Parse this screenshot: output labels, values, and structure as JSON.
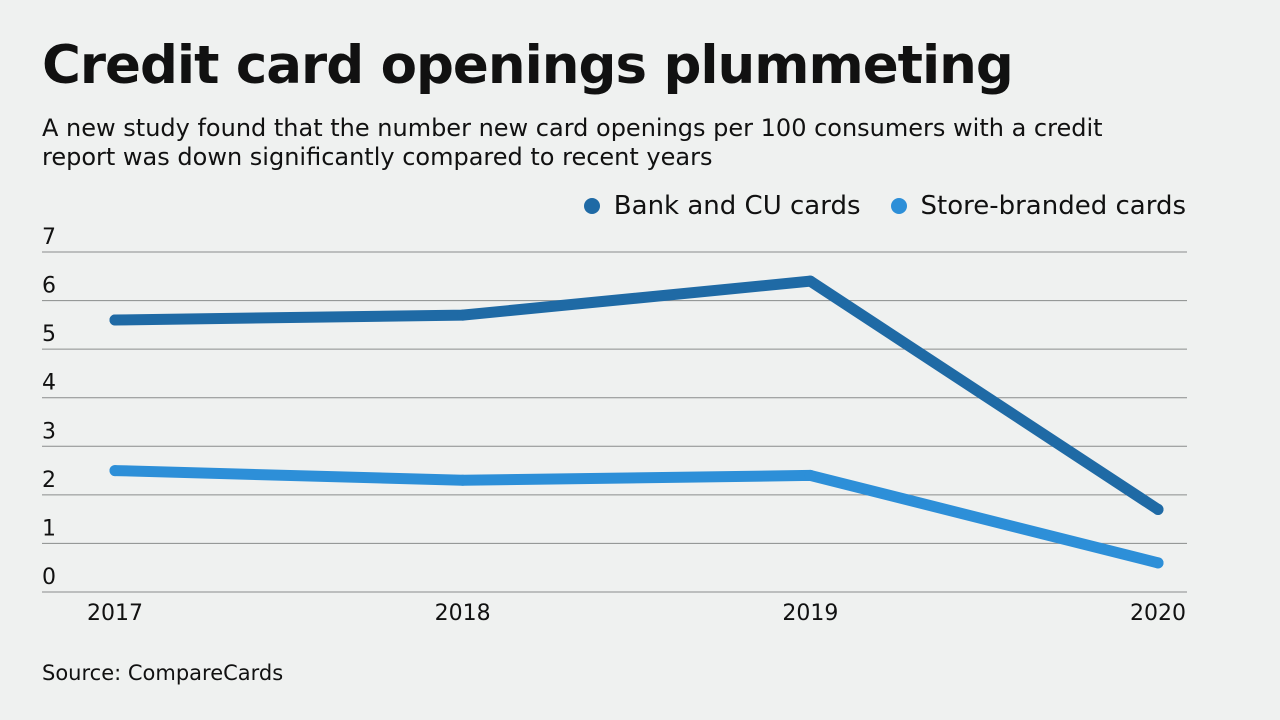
{
  "title": "Credit card openings plummeting",
  "subtitle": "A new study found that the number new card openings per 100 consumers with a credit report was down significantly compared to recent years",
  "source": "Source: CompareCards",
  "legend": {
    "items": [
      {
        "label": "Bank and CU cards",
        "color": "#1f6aa5"
      },
      {
        "label": "Store-branded cards",
        "color": "#2d8fd8"
      }
    ]
  },
  "chart_data": {
    "type": "line",
    "x": [
      "2017",
      "2018",
      "2019",
      "2020"
    ],
    "series": [
      {
        "name": "Bank and CU cards",
        "values": [
          5.6,
          5.7,
          6.4,
          1.7
        ],
        "color": "#1f6aa5"
      },
      {
        "name": "Store-branded cards",
        "values": [
          2.5,
          2.3,
          2.4,
          0.6
        ],
        "color": "#2d8fd8"
      }
    ],
    "ylim": [
      0,
      7
    ],
    "yticks": [
      0,
      1,
      2,
      3,
      4,
      5,
      6,
      7
    ],
    "ylabel": "",
    "xlabel": "",
    "grid": true,
    "legend_position": "top-right"
  }
}
